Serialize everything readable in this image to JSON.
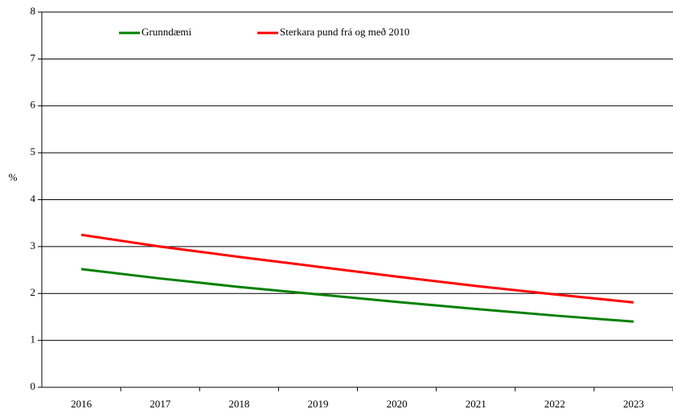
{
  "chart_data": {
    "type": "line",
    "y_label": "%",
    "categories": [
      "2016",
      "2017",
      "2018",
      "2019",
      "2020",
      "2021",
      "2022",
      "2023"
    ],
    "series": [
      {
        "name": "Grunndæmi",
        "color": "#008000",
        "values": [
          2.52,
          2.32,
          2.14,
          1.98,
          1.82,
          1.67,
          1.53,
          1.4
        ]
      },
      {
        "name": "Sterkara pund frá og með 2010",
        "color": "#ff0000",
        "values": [
          3.25,
          3.0,
          2.78,
          2.57,
          2.36,
          2.16,
          1.98,
          1.81
        ]
      }
    ],
    "ylim": [
      0,
      8
    ],
    "yticks": [
      0,
      1,
      2,
      3,
      4,
      5,
      6,
      7,
      8
    ],
    "grid": true
  }
}
